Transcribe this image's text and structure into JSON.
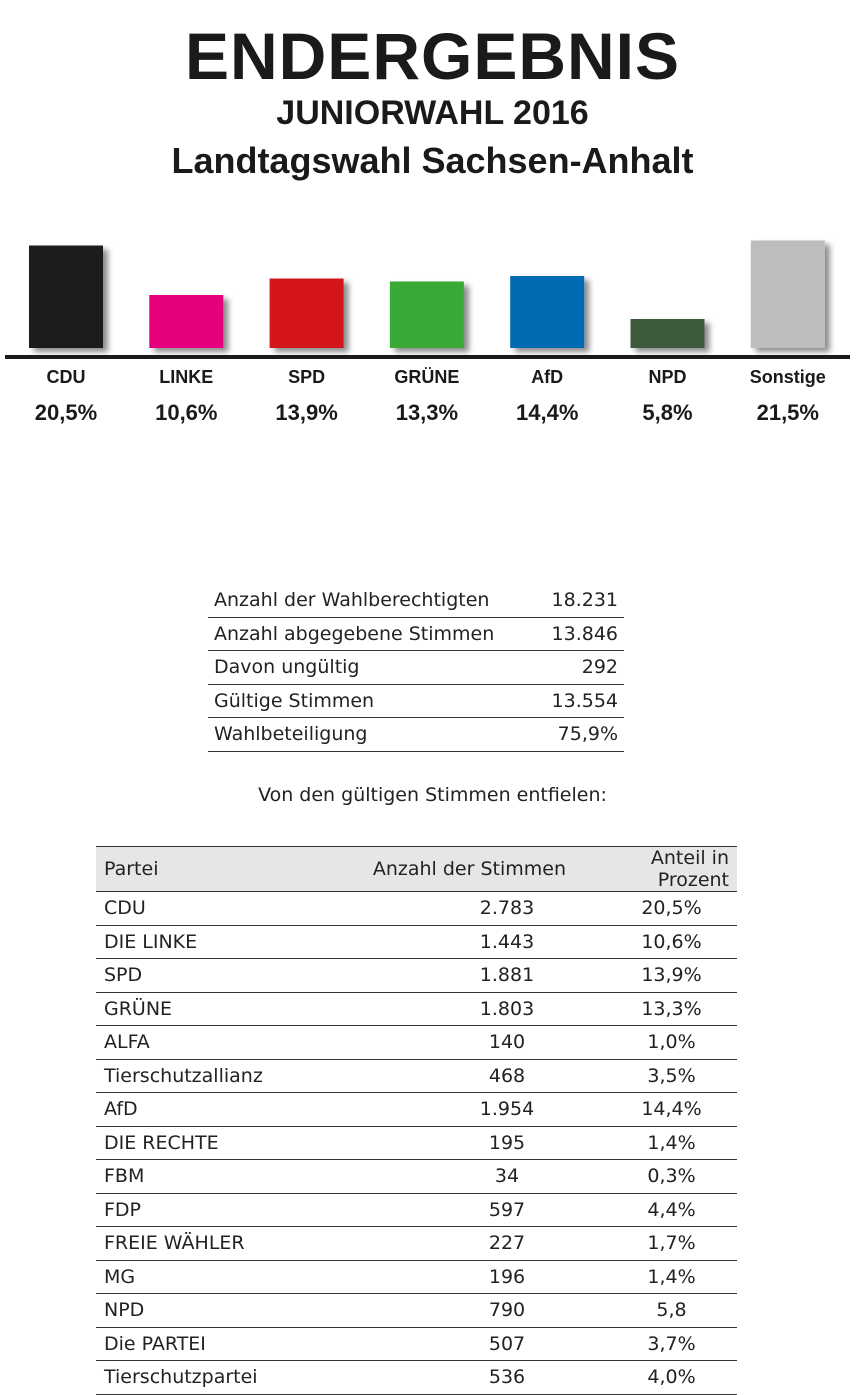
{
  "header": {
    "title": "ENDERGEBNIS",
    "subtitle": "JUNIORWAHL 2016",
    "subtitle2": "Landtagswahl Sachsen-Anhalt"
  },
  "chart_data": {
    "type": "bar",
    "title": "",
    "xlabel": "",
    "ylabel": "",
    "ylim": [
      0,
      22
    ],
    "grid": false,
    "categories": [
      "CDU",
      "LINKE",
      "SPD",
      "GRÜNE",
      "AfD",
      "NPD",
      "Sonstige"
    ],
    "values": [
      20.5,
      10.6,
      13.9,
      13.3,
      14.4,
      5.8,
      21.5
    ],
    "value_labels": [
      "20,5%",
      "10,6%",
      "13,9%",
      "13,3%",
      "14,4%",
      "5,8%",
      "21,5%"
    ],
    "colors": [
      "#1e1e1e",
      "#e6007e",
      "#d4141a",
      "#3aa935",
      "#006ab3",
      "#3e5a3e",
      "#bdbdbd"
    ]
  },
  "stats": [
    {
      "label": "Anzahl der Wahlberechtigten",
      "value": "18.231"
    },
    {
      "label": "Anzahl abgegebene Stimmen",
      "value": "13.846"
    },
    {
      "label": "Davon ungültig",
      "value": "292"
    },
    {
      "label": "Gültige Stimmen",
      "value": "13.554"
    },
    {
      "label": "Wahlbeteiligung",
      "value": "75,9%"
    }
  ],
  "caption": "Von den gültigen Stimmen entfielen:",
  "results": {
    "headers": [
      "Partei",
      "Anzahl der Stimmen",
      "Anteil in Prozent"
    ],
    "rows": [
      [
        "CDU",
        "2.783",
        "20,5%"
      ],
      [
        "DIE LINKE",
        "1.443",
        "10,6%"
      ],
      [
        "SPD",
        "1.881",
        "13,9%"
      ],
      [
        "GRÜNE",
        "1.803",
        "13,3%"
      ],
      [
        "ALFA",
        "140",
        "1,0%"
      ],
      [
        "Tierschutzallianz",
        "468",
        "3,5%"
      ],
      [
        "AfD",
        "1.954",
        "14,4%"
      ],
      [
        "DIE RECHTE",
        "195",
        "1,4%"
      ],
      [
        "FBM",
        "34",
        "0,3%"
      ],
      [
        "FDP",
        "597",
        "4,4%"
      ],
      [
        "FREIE WÄHLER",
        "227",
        "1,7%"
      ],
      [
        "MG",
        "196",
        "1,4%"
      ],
      [
        "NPD",
        "790",
        "5,8"
      ],
      [
        "Die PARTEI",
        "507",
        "3,7%"
      ],
      [
        "Tierschutzpartei",
        "536",
        "4,0%"
      ]
    ]
  }
}
